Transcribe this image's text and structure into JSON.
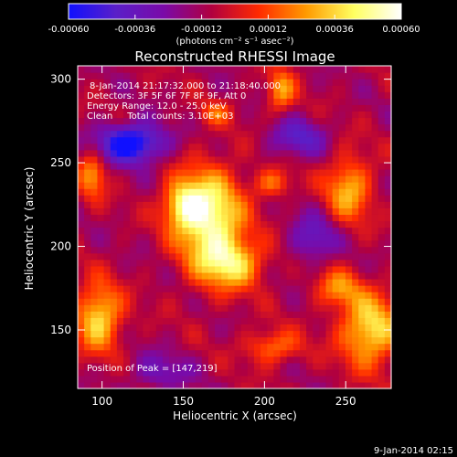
{
  "chart_data": {
    "type": "heatmap",
    "title": "Reconstructed RHESSI Image",
    "xlabel": "Heliocentric X (arcsec)",
    "ylabel": "Heliocentric Y (arcsec)",
    "xlim": [
      85,
      278
    ],
    "ylim": [
      115,
      308
    ],
    "x_ticks": [
      100,
      150,
      200,
      250
    ],
    "y_ticks": [
      150,
      200,
      250,
      300
    ],
    "colorbar": {
      "label": "(photons cm⁻² s⁻¹ asec⁻²)",
      "range": [
        -0.0006,
        0.0006
      ],
      "ticks": [
        "-0.00060",
        "-0.00036",
        "-0.00012",
        "0.00012",
        "0.00036",
        "0.00060"
      ],
      "colors": [
        "#1010ff",
        "#5a1fc8",
        "#7a0aa8",
        "#b00040",
        "#ff2a00",
        "#ff9a00",
        "#ffff60",
        "#ffffff"
      ]
    },
    "annotations": [
      "8-Jan-2014 21:17:32.000 to 21:18:40.000",
      "Detectors: 3F 5F 6F 7F 8F 9F, Att 0",
      "Energy Range: 12.0 - 25.0 keV",
      "Clean     Total counts: 3.10E+03"
    ],
    "peak_label": "Position of Peak = [147,219]",
    "blobs": [
      {
        "x": 167,
        "y": 215,
        "sx": 14,
        "sy": 22,
        "a": 0.00062
      },
      {
        "x": 150,
        "y": 225,
        "sx": 9,
        "sy": 10,
        "a": 0.00045
      },
      {
        "x": 182,
        "y": 190,
        "sx": 13,
        "sy": 10,
        "a": 0.0004
      },
      {
        "x": 98,
        "y": 158,
        "sx": 10,
        "sy": 14,
        "a": 0.0005
      },
      {
        "x": 265,
        "y": 150,
        "sx": 13,
        "sy": 15,
        "a": 0.00052
      },
      {
        "x": 245,
        "y": 175,
        "sx": 10,
        "sy": 8,
        "a": 0.0003
      },
      {
        "x": 252,
        "y": 235,
        "sx": 10,
        "sy": 14,
        "a": 0.0004
      },
      {
        "x": 205,
        "y": 238,
        "sx": 8,
        "sy": 6,
        "a": 0.00028
      },
      {
        "x": 210,
        "y": 293,
        "sx": 6,
        "sy": 9,
        "a": 0.00035
      },
      {
        "x": 94,
        "y": 243,
        "sx": 6,
        "sy": 10,
        "a": 0.00035
      },
      {
        "x": 170,
        "y": 280,
        "sx": 7,
        "sy": 5,
        "a": 0.00022
      },
      {
        "x": 205,
        "y": 140,
        "sx": 12,
        "sy": 7,
        "a": 0.0003
      },
      {
        "x": 118,
        "y": 262,
        "sx": 14,
        "sy": 8,
        "a": -0.0006
      },
      {
        "x": 220,
        "y": 265,
        "sx": 12,
        "sy": 8,
        "a": -0.0003
      },
      {
        "x": 135,
        "y": 125,
        "sx": 14,
        "sy": 8,
        "a": -0.0002
      },
      {
        "x": 230,
        "y": 205,
        "sx": 10,
        "sy": 10,
        "a": -0.00028
      }
    ]
  },
  "footer": {
    "timestamp": "9-Jan-2014 02:15"
  }
}
